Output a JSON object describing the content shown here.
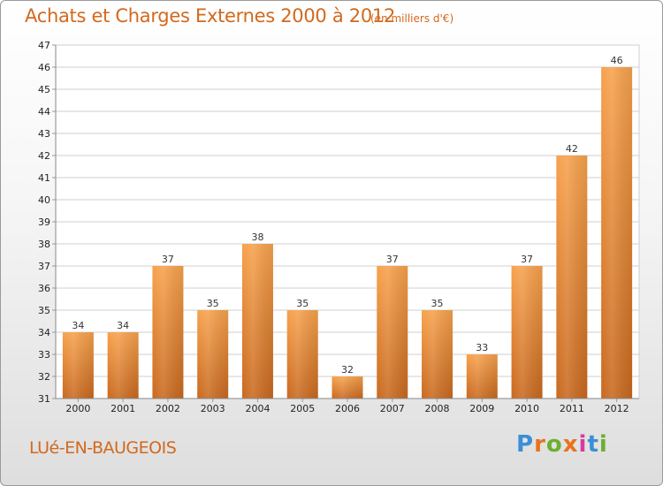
{
  "header": {
    "title": "Achats et Charges Externes 2000 à 2012",
    "subtitle": "(en milliers d'€)"
  },
  "footer": {
    "place": "LUé-EN-BAUGEOIS",
    "brand": "Proxiti",
    "brand_colors": [
      "#3a8fd6",
      "#e8731c",
      "#6bb02e",
      "#e8731c",
      "#d63aa0",
      "#3a8fd6",
      "#6bb02e"
    ]
  },
  "colors": {
    "accent": "#d2691e",
    "bar_light": "#f7a24d",
    "bar_dark": "#c9691f",
    "grid": "#cfcfcf"
  },
  "chart_data": {
    "type": "bar",
    "title": "Achats et Charges Externes 2000 à 2012",
    "subtitle": "(en milliers d'€)",
    "categories": [
      "2000",
      "2001",
      "2002",
      "2003",
      "2004",
      "2005",
      "2006",
      "2007",
      "2008",
      "2009",
      "2010",
      "2011",
      "2012"
    ],
    "values": [
      34,
      34,
      37,
      35,
      38,
      35,
      32,
      37,
      35,
      33,
      37,
      42,
      46
    ],
    "ylim": [
      31,
      47
    ],
    "yticks": [
      31,
      32,
      33,
      34,
      35,
      36,
      37,
      38,
      39,
      40,
      41,
      42,
      43,
      44,
      45,
      46,
      47
    ],
    "grid": true,
    "legend": "none"
  }
}
